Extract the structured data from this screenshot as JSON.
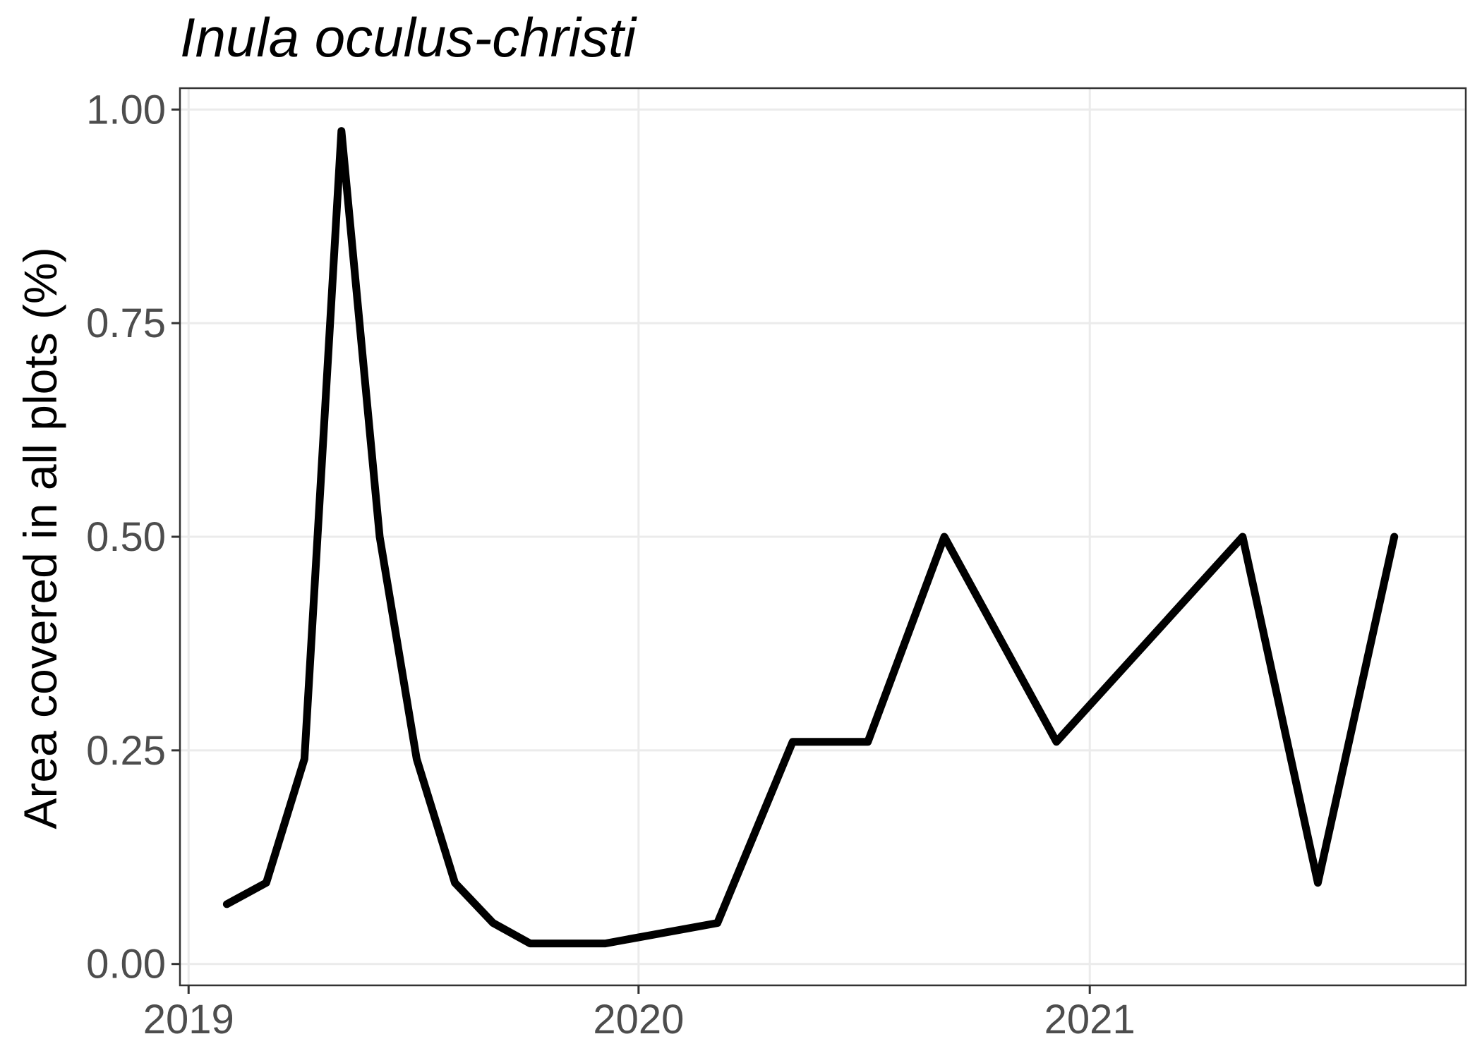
{
  "chart_data": {
    "type": "line",
    "title": "Inula oculus-christi",
    "xlabel": "",
    "ylabel": "Area covered in all plots (%)",
    "x_ticks": [
      "2019",
      "2020",
      "2021"
    ],
    "y_ticks": [
      "0.00",
      "0.25",
      "0.50",
      "0.75",
      "1.00"
    ],
    "xlim": [
      "2018-12-25",
      "2021-11-02"
    ],
    "ylim": [
      -0.025,
      1.025
    ],
    "grid": true,
    "line_color": "#000000",
    "series": [
      {
        "x": [
          "2019-02-01",
          "2019-03-05",
          "2019-04-05",
          "2019-05-05",
          "2019-06-05",
          "2019-07-05",
          "2019-08-05",
          "2019-09-05",
          "2019-10-05",
          "2019-11-05",
          "2019-12-05",
          "2020-03-05",
          "2020-05-05",
          "2020-07-05",
          "2020-09-05",
          "2020-12-05",
          "2021-05-05",
          "2021-07-05",
          "2021-09-05"
        ],
        "values": [
          0.07,
          0.095,
          0.24,
          0.975,
          0.5,
          0.24,
          0.095,
          0.048,
          0.024,
          0.024,
          0.024,
          0.048,
          0.26,
          0.26,
          0.5,
          0.26,
          0.5,
          0.095,
          0.5
        ]
      }
    ]
  }
}
